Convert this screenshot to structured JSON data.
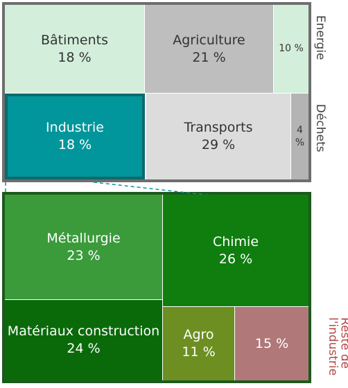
{
  "chart_data": {
    "type": "treemap",
    "groups": [
      {
        "categories": [
          "Bâtiments",
          "Agriculture",
          "Energie",
          "Industrie",
          "Transports",
          "Déchets"
        ],
        "values": [
          18,
          21,
          10,
          18,
          29,
          4
        ],
        "value_labels": [
          "18 %",
          "21 %",
          "10 %",
          "18 %",
          "29 %",
          "4 %"
        ],
        "colors": [
          "#d3eedb",
          "#bebebe",
          "#d3eedb",
          "#00969b",
          "#dcdcdc",
          "#b4b4b4"
        ]
      },
      {
        "categories": [
          "Métallurgie",
          "Chimie",
          "Matériaux construction",
          "Agro",
          "Reste de l'industrie"
        ],
        "values": [
          23,
          26,
          24,
          11,
          15
        ],
        "value_labels": [
          "23 %",
          "26 %",
          "24 %",
          "11 %",
          "15 %"
        ],
        "colors": [
          "#3b9b3b",
          "#0f7e0f",
          "#0a6a0a",
          "#6d8f22",
          "#b07878"
        ]
      }
    ]
  }
}
